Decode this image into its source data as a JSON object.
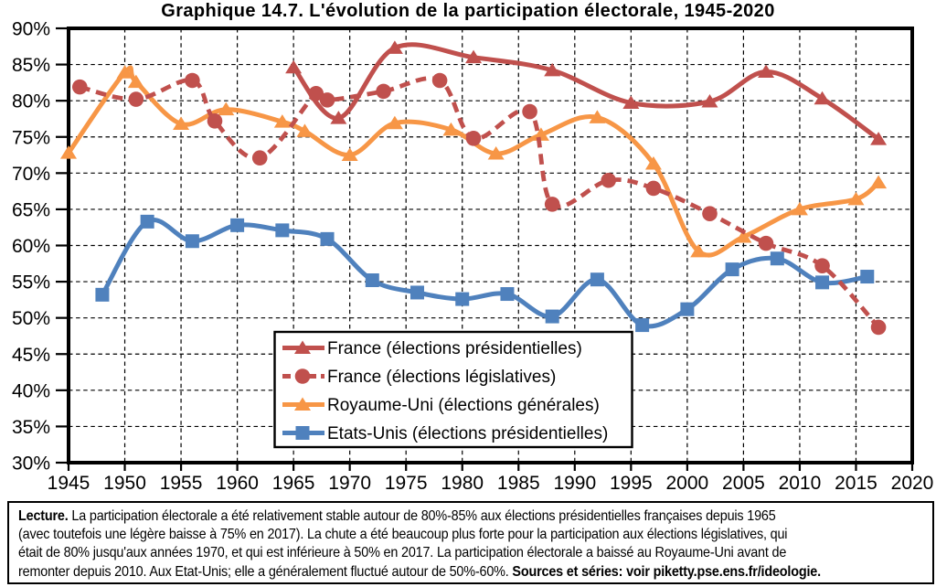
{
  "title": "Graphique 14.7. L'évolution de la participation électorale, 1945-2020",
  "chart_data": {
    "type": "line",
    "title": "Graphique 14.7. L'évolution de la participation électorale, 1945-2020",
    "xlabel": "",
    "ylabel": "",
    "xlim": [
      1945,
      2020
    ],
    "ylim": [
      30,
      90
    ],
    "x_ticks": [
      1945,
      1950,
      1955,
      1960,
      1965,
      1970,
      1975,
      1980,
      1985,
      1990,
      1995,
      2000,
      2005,
      2010,
      2015,
      2020
    ],
    "y_ticks": [
      30,
      35,
      40,
      45,
      50,
      55,
      60,
      65,
      70,
      75,
      80,
      85,
      90
    ],
    "y_tick_suffix": "%",
    "grid": "dashed-both-axes",
    "legend_position": "inside-lower-center-box",
    "series": [
      {
        "id": "france-presidentielles",
        "name": "France (élections présidentielles)",
        "color": "#C0504D",
        "line": "solid",
        "marker": "triangle",
        "points": [
          [
            1965,
            84.6
          ],
          [
            1969,
            77.6
          ],
          [
            1974,
            87.3
          ],
          [
            1981,
            86.0
          ],
          [
            1988,
            84.2
          ],
          [
            1995,
            79.7
          ],
          [
            2002,
            79.9
          ],
          [
            2007,
            84.0
          ],
          [
            2012,
            80.3
          ],
          [
            2017,
            74.7
          ]
        ]
      },
      {
        "id": "france-legislatives",
        "name": "France (élections législatives)",
        "color": "#C0504D",
        "line": "dashed",
        "marker": "circle",
        "points": [
          [
            1946,
            81.9
          ],
          [
            1951,
            80.2
          ],
          [
            1956,
            82.8
          ],
          [
            1958,
            77.2
          ],
          [
            1962,
            72.1
          ],
          [
            1967,
            81.0
          ],
          [
            1968,
            80.1
          ],
          [
            1973,
            81.3
          ],
          [
            1978,
            82.8
          ],
          [
            1981,
            74.8
          ],
          [
            1986,
            78.5
          ],
          [
            1988,
            65.7
          ],
          [
            1993,
            69.0
          ],
          [
            1997,
            67.9
          ],
          [
            2002,
            64.4
          ],
          [
            2007,
            60.3
          ],
          [
            2012,
            57.2
          ],
          [
            2017,
            48.7
          ]
        ]
      },
      {
        "id": "royaume-uni",
        "name": "Royaume-Uni (élections générales)",
        "color": "#F79646",
        "line": "solid",
        "marker": "triangle",
        "points": [
          [
            1945,
            72.8
          ],
          [
            1950,
            83.9
          ],
          [
            1951,
            82.6
          ],
          [
            1955,
            76.8
          ],
          [
            1959,
            78.8
          ],
          [
            1964,
            77.1
          ],
          [
            1966,
            75.8
          ],
          [
            1970,
            72.5
          ],
          [
            1974,
            76.9
          ],
          [
            1979,
            76.0
          ],
          [
            1983,
            72.7
          ],
          [
            1987,
            75.3
          ],
          [
            1992,
            77.7
          ],
          [
            1997,
            71.3
          ],
          [
            2001,
            59.2
          ],
          [
            2005,
            61.2
          ],
          [
            2010,
            65.0
          ],
          [
            2015,
            66.4
          ],
          [
            2017,
            68.7
          ]
        ]
      },
      {
        "id": "etats-unis",
        "name": "Etats-Unis (élections présidentielles)",
        "color": "#4F81BD",
        "line": "solid",
        "marker": "square",
        "points": [
          [
            1948,
            53.2
          ],
          [
            1952,
            63.3
          ],
          [
            1956,
            60.6
          ],
          [
            1960,
            62.8
          ],
          [
            1964,
            62.1
          ],
          [
            1968,
            60.9
          ],
          [
            1972,
            55.2
          ],
          [
            1976,
            53.5
          ],
          [
            1980,
            52.6
          ],
          [
            1984,
            53.3
          ],
          [
            1988,
            50.2
          ],
          [
            1992,
            55.3
          ],
          [
            1996,
            49.0
          ],
          [
            2000,
            51.2
          ],
          [
            2004,
            56.7
          ],
          [
            2008,
            58.2
          ],
          [
            2012,
            54.9
          ],
          [
            2016,
            55.7
          ]
        ]
      }
    ]
  },
  "footer": {
    "lecture_label": "Lecture.",
    "line1": " La participation électorale a été relativement stable autour de 80%-85% aux élections présidentielles françaises depuis 1965",
    "line2": "(avec toutefois une légère baisse à 75% en 2017). La chute a été beaucoup plus forte pour la participation aux élections législatives, qui",
    "line3": "était de 80% jusqu'aux années 1970, et qui est inférieure à 50% en 2017. La participation électorale a baissé au Royaume-Uni avant de",
    "line4": "remonter depuis 2010. Aux Etat-Unis; elle a généralement fluctué autour de 50%-60%. ",
    "sources": "Sources et séries: voir piketty.pse.ens.fr/ideologie."
  }
}
